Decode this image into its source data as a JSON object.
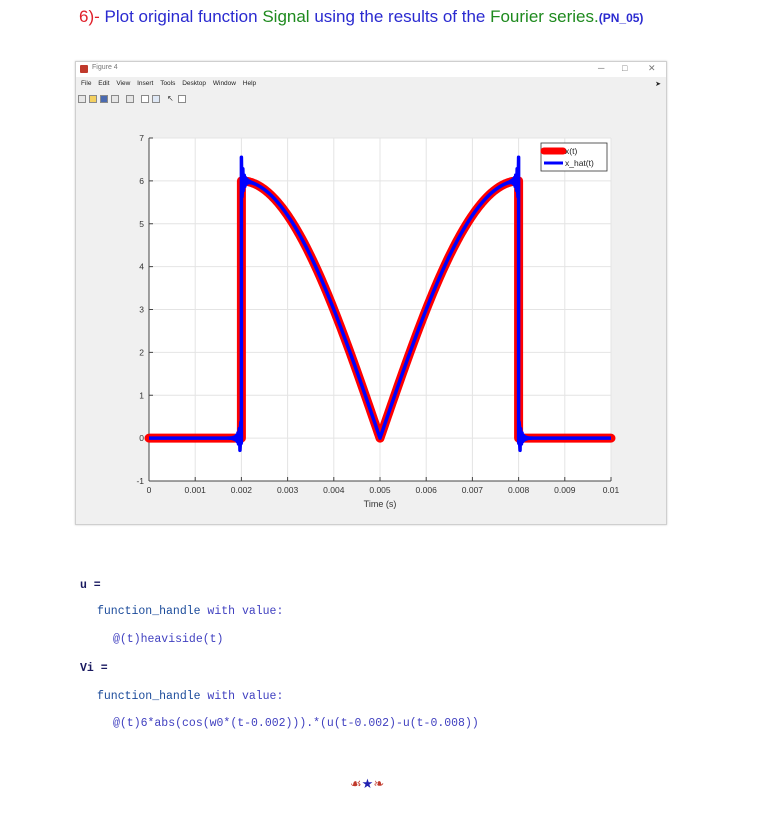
{
  "heading": {
    "prefix": "6)-",
    "part1": " Plot original function ",
    "signal": "Signal",
    "part2": " using the results of the ",
    "fourier": "Fourier series.",
    "tag": "(PN_05)"
  },
  "window": {
    "title": "Figure 4",
    "min_glyph": "─",
    "max_glyph": "□",
    "close_glyph": "✕",
    "menus": [
      "File",
      "Edit",
      "View",
      "Insert",
      "Tools",
      "Desktop",
      "Window",
      "Help"
    ],
    "menu_arrow": "➤"
  },
  "chart_data": {
    "type": "line",
    "xlabel": "Time (s)",
    "ylabel": "",
    "xlim": [
      0,
      0.01
    ],
    "ylim": [
      -1,
      7
    ],
    "xticks": [
      "0",
      "0.001",
      "0.002",
      "0.003",
      "0.004",
      "0.005",
      "0.006",
      "0.007",
      "0.008",
      "0.009",
      "0.01"
    ],
    "yticks": [
      "-1",
      "0",
      "1",
      "2",
      "3",
      "4",
      "5",
      "6",
      "7"
    ],
    "grid": true,
    "legend_position": "top-right",
    "series": [
      {
        "name": "x(t)",
        "color": "#ff0000",
        "formula": "6*abs(cos(w0*(t-0.002))) on [0.002,0.008], else 0"
      },
      {
        "name": "x_hat(t)",
        "color": "#0000ff",
        "formula": "Fourier series reconstruction with Gibbs overshoot"
      }
    ],
    "period": 0.006
  },
  "code": {
    "u_var": "u =",
    "u_line1_a": "function_handle",
    "u_line1_b": " with value:",
    "u_line2": "@(t)heaviside(t)",
    "vi_var": "Vi =",
    "vi_line1_a": "function_handle",
    "vi_line1_b": " with value:",
    "vi_line2": "@(t)6*abs(cos(w0*(t-0.002))).*(u(t-0.002)-u(t-0.008))"
  },
  "ornament": {
    "left": "☙",
    "star": "★",
    "right": "❧"
  }
}
